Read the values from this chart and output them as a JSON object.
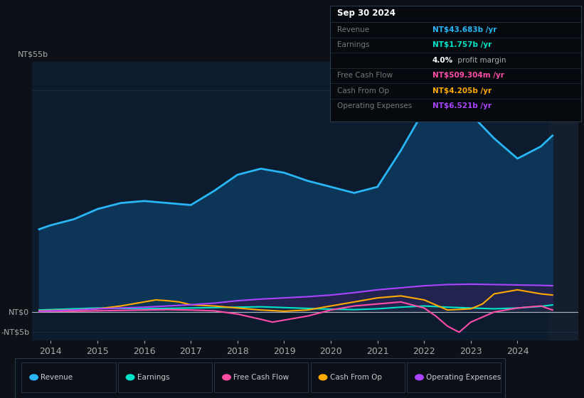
{
  "background_color": "#0d1117",
  "plot_bg_color": "#0d1b2e",
  "grid_color": "#1e3a50",
  "text_color": "#aaaaaa",
  "ylim": [
    -7,
    62
  ],
  "yticks": [
    -5,
    0,
    55
  ],
  "ytick_labels": [
    "-NT$5b",
    "NT$0",
    "NT$55b"
  ],
  "xlim": [
    2013.6,
    2025.3
  ],
  "xticks": [
    2014,
    2015,
    2016,
    2017,
    2018,
    2019,
    2020,
    2021,
    2022,
    2023,
    2024
  ],
  "series": {
    "revenue": {
      "label": "Revenue",
      "color": "#29b6f6",
      "fill_color": "#0d3558",
      "linewidth": 2.0,
      "x": [
        2013.75,
        2014.0,
        2014.5,
        2015.0,
        2015.5,
        2016.0,
        2016.5,
        2017.0,
        2017.5,
        2018.0,
        2018.5,
        2019.0,
        2019.5,
        2020.0,
        2020.5,
        2021.0,
        2021.5,
        2022.0,
        2022.25,
        2022.5,
        2022.75,
        2023.0,
        2023.5,
        2024.0,
        2024.5,
        2024.75
      ],
      "y": [
        20.5,
        21.5,
        23.0,
        25.5,
        27.0,
        27.5,
        27.0,
        26.5,
        30.0,
        34.0,
        35.5,
        34.5,
        32.5,
        31.0,
        29.5,
        31.0,
        40.0,
        50.0,
        54.0,
        55.0,
        53.0,
        49.0,
        43.0,
        38.0,
        41.0,
        43.7
      ]
    },
    "earnings": {
      "label": "Earnings",
      "color": "#00e5c8",
      "fill_color": "#003d35",
      "linewidth": 1.5,
      "x": [
        2013.75,
        2014.0,
        2014.5,
        2015.0,
        2015.5,
        2016.0,
        2016.5,
        2017.0,
        2017.5,
        2018.0,
        2018.5,
        2019.0,
        2019.5,
        2020.0,
        2020.5,
        2021.0,
        2021.5,
        2022.0,
        2022.5,
        2023.0,
        2023.5,
        2024.0,
        2024.5,
        2024.75
      ],
      "y": [
        0.5,
        0.6,
        0.8,
        1.0,
        0.9,
        0.8,
        0.9,
        1.0,
        1.1,
        1.2,
        1.3,
        1.1,
        0.9,
        0.7,
        0.6,
        0.8,
        1.2,
        1.5,
        1.2,
        1.0,
        0.8,
        1.0,
        1.4,
        1.757
      ]
    },
    "free_cash_flow": {
      "label": "Free Cash Flow",
      "color": "#ff4da6",
      "linewidth": 1.5,
      "x": [
        2013.75,
        2014.0,
        2014.5,
        2015.0,
        2015.5,
        2016.0,
        2016.5,
        2017.0,
        2017.5,
        2018.0,
        2018.5,
        2018.75,
        2019.0,
        2019.5,
        2020.0,
        2020.5,
        2021.0,
        2021.5,
        2022.0,
        2022.25,
        2022.5,
        2022.75,
        2023.0,
        2023.5,
        2024.0,
        2024.5,
        2024.75
      ],
      "y": [
        0.1,
        0.2,
        0.2,
        0.3,
        0.4,
        0.5,
        0.6,
        0.5,
        0.3,
        -0.5,
        -1.8,
        -2.5,
        -2.0,
        -1.0,
        0.5,
        1.5,
        2.0,
        2.5,
        1.0,
        -1.0,
        -3.5,
        -5.0,
        -2.5,
        0.0,
        1.0,
        1.5,
        0.5
      ]
    },
    "cash_from_op": {
      "label": "Cash From Op",
      "color": "#ffaa00",
      "linewidth": 1.5,
      "x": [
        2013.75,
        2014.0,
        2014.5,
        2015.0,
        2015.5,
        2016.0,
        2016.25,
        2016.5,
        2016.75,
        2017.0,
        2017.5,
        2018.0,
        2018.5,
        2019.0,
        2019.5,
        2020.0,
        2020.5,
        2021.0,
        2021.5,
        2022.0,
        2022.5,
        2023.0,
        2023.25,
        2023.5,
        2024.0,
        2024.5,
        2024.75
      ],
      "y": [
        0.3,
        0.4,
        0.5,
        0.8,
        1.5,
        2.5,
        3.0,
        2.8,
        2.5,
        1.8,
        1.5,
        1.0,
        0.5,
        0.2,
        0.5,
        1.5,
        2.5,
        3.5,
        4.0,
        3.0,
        0.5,
        0.8,
        2.0,
        4.5,
        5.5,
        4.5,
        4.205
      ]
    },
    "operating_expenses": {
      "label": "Operating Expenses",
      "color": "#aa44ff",
      "fill_color": "#2d1a4a",
      "linewidth": 1.5,
      "x": [
        2013.75,
        2014.0,
        2014.5,
        2015.0,
        2015.5,
        2016.0,
        2016.5,
        2017.0,
        2017.5,
        2018.0,
        2018.5,
        2019.0,
        2019.5,
        2020.0,
        2020.5,
        2021.0,
        2021.5,
        2022.0,
        2022.5,
        2023.0,
        2023.5,
        2024.0,
        2024.5,
        2024.75
      ],
      "y": [
        0.2,
        0.3,
        0.5,
        0.8,
        1.0,
        1.2,
        1.5,
        1.8,
        2.2,
        2.8,
        3.2,
        3.5,
        3.8,
        4.2,
        4.8,
        5.5,
        6.0,
        6.5,
        6.8,
        6.9,
        6.8,
        6.7,
        6.6,
        6.521
      ]
    }
  },
  "info_box": {
    "title": "Sep 30 2024",
    "rows": [
      {
        "label": "Revenue",
        "value": "NT$43.683b /yr",
        "value_color": "#29b6f6"
      },
      {
        "label": "Earnings",
        "value": "NT$1.757b /yr",
        "value_color": "#00e5c8"
      },
      {
        "label": "",
        "value": "4.0% profit margin",
        "value_color": "#ffffff"
      },
      {
        "label": "Free Cash Flow",
        "value": "NT$509.304m /yr",
        "value_color": "#ff4da6"
      },
      {
        "label": "Cash From Op",
        "value": "NT$4.205b /yr",
        "value_color": "#ffaa00"
      },
      {
        "label": "Operating Expenses",
        "value": "NT$6.521b /yr",
        "value_color": "#aa44ff"
      }
    ],
    "bg_color": "#060a0f",
    "border_color": "#2a3a4a",
    "label_color": "#777777",
    "title_color": "#ffffff"
  },
  "legend_items": [
    {
      "label": "Revenue",
      "color": "#29b6f6"
    },
    {
      "label": "Earnings",
      "color": "#00e5c8"
    },
    {
      "label": "Free Cash Flow",
      "color": "#ff4da6"
    },
    {
      "label": "Cash From Op",
      "color": "#ffaa00"
    },
    {
      "label": "Operating Expenses",
      "color": "#aa44ff"
    }
  ]
}
